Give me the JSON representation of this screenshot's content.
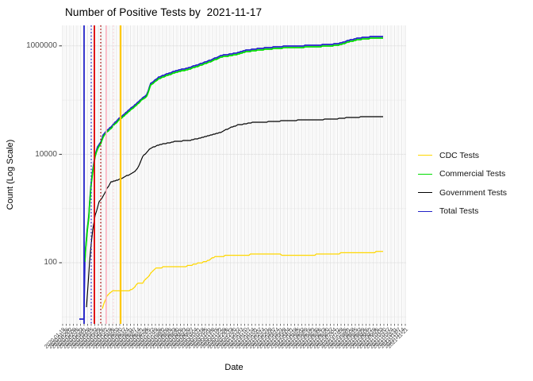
{
  "title": "Number of Positive Tests by  2021-11-17",
  "axes": {
    "x": {
      "label": "Date"
    },
    "y": {
      "label": "Count (Log Scale)",
      "tick_labels": [
        "1000000",
        "10000",
        "100"
      ]
    }
  },
  "legend": {
    "items": [
      {
        "label": "CDC Tests",
        "color": "#FFD700"
      },
      {
        "label": "Commercial Tests",
        "color": "#00DD00"
      },
      {
        "label": "Government Tests",
        "color": "#000000"
      },
      {
        "label": "Total Tests",
        "color": "#2222C8"
      }
    ]
  },
  "chart_data": {
    "type": "line",
    "title": "Number of Positive Tests by  2021-11-17",
    "xlabel": "Date",
    "ylabel": "Count (Log Scale)",
    "y_scale": "log10",
    "y_major_ticks": [
      100,
      10000,
      1000000
    ],
    "y_minor_gridlines": [
      10,
      1000,
      100000
    ],
    "ylim_approx": [
      7,
      2300000
    ],
    "x_axis": {
      "tick_label_format": "YYYY-MM-DD",
      "approx_start_date": "2020-01-19",
      "approx_end_date": "2021-11-21",
      "tick_interval_days": 7,
      "tick_count": 97,
      "labels_rotated_deg": 45,
      "labels_overlapping_illegible": true
    },
    "legend_position": "right",
    "grid": true,
    "series": [
      {
        "name": "Total Tests",
        "color": "#2222C8",
        "stroke_width": 1.7,
        "step_quant": 1.0,
        "points_xfrac_value": [
          [
            0.0507,
            9
          ],
          [
            0.064,
            9
          ],
          [
            0.0668,
            109
          ],
          [
            0.0691,
            190
          ],
          [
            0.0737,
            410
          ],
          [
            0.0783,
            727
          ],
          [
            0.0806,
            1280
          ],
          [
            0.0853,
            3000
          ],
          [
            0.0899,
            5140
          ],
          [
            0.0968,
            9950
          ],
          [
            0.1037,
            13500
          ],
          [
            0.1129,
            16600
          ],
          [
            0.1198,
            22400
          ],
          [
            0.1313,
            27500
          ],
          [
            0.1429,
            32300
          ],
          [
            0.1659,
            45700
          ],
          [
            0.1774,
            52400
          ],
          [
            0.1889,
            61500
          ],
          [
            0.212,
            81200
          ],
          [
            0.235,
            111000
          ],
          [
            0.2465,
            125000
          ],
          [
            0.2581,
            203000
          ],
          [
            0.2811,
            263000
          ],
          [
            0.3041,
            303000
          ],
          [
            0.3272,
            340000
          ],
          [
            0.3733,
            404000
          ],
          [
            0.4194,
            510000
          ],
          [
            0.4654,
            669000
          ],
          [
            0.5115,
            749000
          ],
          [
            0.5346,
            835000
          ],
          [
            0.5806,
            904000
          ],
          [
            0.6267,
            968000
          ],
          [
            0.6728,
            995000
          ],
          [
            0.7189,
            1016000
          ],
          [
            0.765,
            1054000
          ],
          [
            0.7995,
            1091000
          ],
          [
            0.8341,
            1263000
          ],
          [
            0.8571,
            1370000
          ],
          [
            0.8802,
            1445000
          ],
          [
            0.9032,
            1477000
          ],
          [
            0.9332,
            1498000
          ]
        ]
      },
      {
        "name": "Commercial Tests",
        "color": "#00DD00",
        "stroke_width": 1.7,
        "step_quant": 1.0,
        "points_xfrac_value": [
          [
            0.0668,
            102
          ],
          [
            0.0691,
            177
          ],
          [
            0.0737,
            383
          ],
          [
            0.0783,
            679
          ],
          [
            0.0806,
            1200
          ],
          [
            0.0853,
            2800
          ],
          [
            0.0899,
            4800
          ],
          [
            0.0968,
            9300
          ],
          [
            0.1037,
            12600
          ],
          [
            0.1129,
            15500
          ],
          [
            0.1198,
            20900
          ],
          [
            0.1313,
            25700
          ],
          [
            0.1429,
            30200
          ],
          [
            0.1659,
            42700
          ],
          [
            0.1774,
            49000
          ],
          [
            0.1889,
            57500
          ],
          [
            0.212,
            75900
          ],
          [
            0.235,
            104000
          ],
          [
            0.2465,
            117000
          ],
          [
            0.2581,
            190000
          ],
          [
            0.2811,
            246000
          ],
          [
            0.3041,
            283000
          ],
          [
            0.3272,
            318000
          ],
          [
            0.3733,
            378000
          ],
          [
            0.4194,
            477000
          ],
          [
            0.4654,
            625000
          ],
          [
            0.5115,
            700000
          ],
          [
            0.5346,
            780000
          ],
          [
            0.5806,
            845000
          ],
          [
            0.6267,
            905000
          ],
          [
            0.6728,
            930000
          ],
          [
            0.7189,
            950000
          ],
          [
            0.765,
            985000
          ],
          [
            0.7995,
            1020000
          ],
          [
            0.8341,
            1180000
          ],
          [
            0.8571,
            1280000
          ],
          [
            0.8802,
            1350000
          ],
          [
            0.9032,
            1380000
          ],
          [
            0.9332,
            1400000
          ]
        ]
      },
      {
        "name": "Government Tests",
        "color": "#000000",
        "stroke_width": 1.15,
        "step_quant": 1.0,
        "points_xfrac_value": [
          [
            0.0714,
            15
          ],
          [
            0.076,
            39
          ],
          [
            0.0806,
            107
          ],
          [
            0.0853,
            224
          ],
          [
            0.0899,
            411
          ],
          [
            0.0968,
            750
          ],
          [
            0.1083,
            1330
          ],
          [
            0.1198,
            1680
          ],
          [
            0.1313,
            2350
          ],
          [
            0.1429,
            3080
          ],
          [
            0.1659,
            3420
          ],
          [
            0.1889,
            4030
          ],
          [
            0.212,
            4780
          ],
          [
            0.2235,
            6030
          ],
          [
            0.235,
            9030
          ],
          [
            0.2465,
            11000
          ],
          [
            0.2581,
            13000
          ],
          [
            0.2811,
            14900
          ],
          [
            0.3272,
            17100
          ],
          [
            0.3733,
            18200
          ],
          [
            0.4194,
            21300
          ],
          [
            0.4654,
            26000
          ],
          [
            0.4885,
            31000
          ],
          [
            0.5115,
            34800
          ],
          [
            0.5576,
            38900
          ],
          [
            0.6037,
            39800
          ],
          [
            0.6567,
            42000
          ],
          [
            0.7419,
            43500
          ],
          [
            0.788,
            44500
          ],
          [
            0.8341,
            47800
          ],
          [
            0.8802,
            49000
          ],
          [
            0.9332,
            49800
          ]
        ]
      },
      {
        "name": "CDC Tests",
        "color": "#FFD700",
        "stroke_width": 1.25,
        "step_quant": 1.6,
        "points_xfrac_value": [
          [
            0.1175,
            14
          ],
          [
            0.1221,
            18
          ],
          [
            0.1267,
            21
          ],
          [
            0.1313,
            24
          ],
          [
            0.1382,
            27
          ],
          [
            0.1475,
            30
          ],
          [
            0.1959,
            30
          ],
          [
            0.2074,
            34
          ],
          [
            0.2166,
            39
          ],
          [
            0.2258,
            43
          ],
          [
            0.235,
            43
          ],
          [
            0.2465,
            51
          ],
          [
            0.2581,
            64
          ],
          [
            0.2696,
            76
          ],
          [
            0.2811,
            82
          ],
          [
            0.3571,
            84
          ],
          [
            0.3733,
            90
          ],
          [
            0.4032,
            100
          ],
          [
            0.4194,
            107
          ],
          [
            0.4493,
            131
          ],
          [
            0.5069,
            138
          ],
          [
            0.5968,
            145
          ],
          [
            0.6889,
            136
          ],
          [
            0.735,
            141
          ],
          [
            0.8641,
            155
          ],
          [
            0.9332,
            158
          ]
        ]
      }
    ],
    "event_vlines": [
      {
        "x_frac": 0.0645,
        "color": "#2222C8",
        "style": "solid",
        "width": 1.8
      },
      {
        "x_frac": 0.0853,
        "color": "#2222C8",
        "style": "dotted",
        "width": 1.3
      },
      {
        "x_frac": 0.0945,
        "color": "#DD0000",
        "style": "solid",
        "width": 1.8
      },
      {
        "x_frac": 0.1129,
        "color": "#AA0000",
        "style": "dotted",
        "width": 1.3
      },
      {
        "x_frac": 0.129,
        "color": "#FFB3C1",
        "style": "solid",
        "width": 1.6
      },
      {
        "x_frac": 0.1498,
        "color": "#FFD2DA",
        "style": "dotted",
        "width": 1.2
      },
      {
        "x_frac": 0.1705,
        "color": "#FFC800",
        "style": "solid",
        "width": 2.2
      }
    ]
  }
}
